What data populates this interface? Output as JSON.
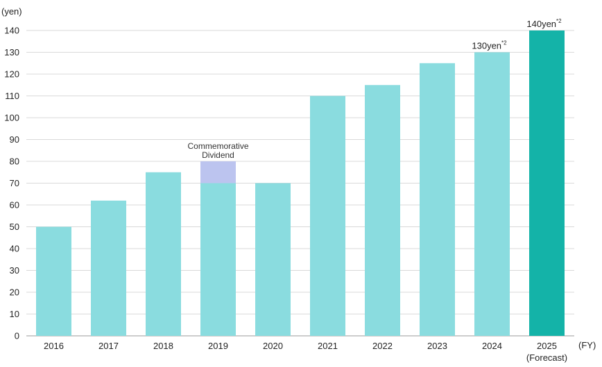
{
  "chart_data": {
    "type": "bar",
    "ylabel": "(yen)",
    "xlabel": "(FY)",
    "ylim": [
      0,
      140
    ],
    "yticks": [
      0,
      10,
      20,
      30,
      40,
      50,
      60,
      70,
      80,
      90,
      100,
      110,
      120,
      130,
      140
    ],
    "grid": true,
    "categories": [
      {
        "label": "2016",
        "sub": ""
      },
      {
        "label": "2017",
        "sub": ""
      },
      {
        "label": "2018",
        "sub": ""
      },
      {
        "label": "2019",
        "sub": ""
      },
      {
        "label": "2020",
        "sub": ""
      },
      {
        "label": "2021",
        "sub": ""
      },
      {
        "label": "2022",
        "sub": ""
      },
      {
        "label": "2023",
        "sub": ""
      },
      {
        "label": "2024",
        "sub": ""
      },
      {
        "label": "2025",
        "sub": "(Forecast)"
      }
    ],
    "series": [
      {
        "values": [
          50,
          62,
          75,
          70,
          70,
          110,
          115,
          125,
          130,
          140
        ]
      },
      {
        "values": [
          0,
          0,
          0,
          10,
          0,
          0,
          0,
          0,
          0,
          0
        ]
      }
    ],
    "annotations": [
      {
        "category": "2019",
        "lines": [
          "Commemorative",
          "Dividend"
        ]
      }
    ],
    "data_labels": [
      {
        "category": "2024",
        "text": "130yen",
        "sup": "*2"
      },
      {
        "category": "2025",
        "text": "140yen",
        "sup": "*2"
      }
    ],
    "colors": {
      "bar": "#8adcdf",
      "bar_highlight": "#14b3a8",
      "commemorative": "#bcc4ef",
      "grid": "#d9d9d9",
      "axis": "#999999"
    }
  }
}
